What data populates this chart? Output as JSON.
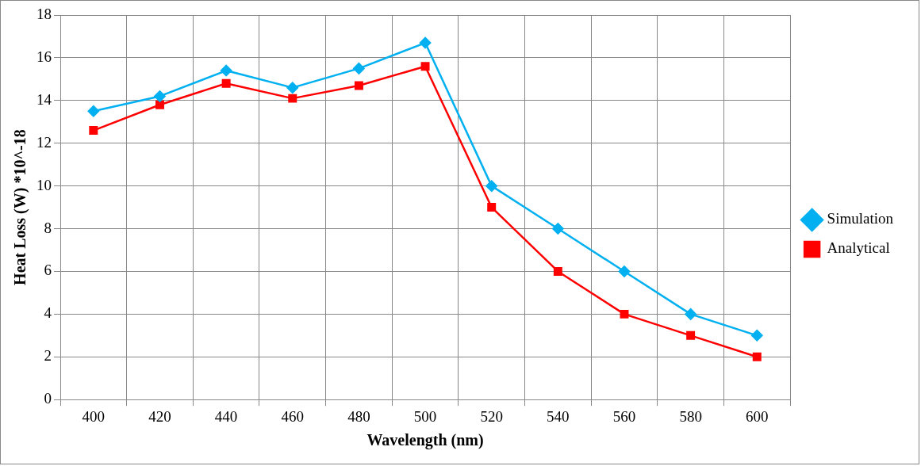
{
  "chart_data": {
    "type": "line",
    "xlabel": "Wavelength (nm)",
    "ylabel": "Heat Loss (W) *10^-18",
    "categories": [
      "400",
      "420",
      "440",
      "460",
      "480",
      "500",
      "520",
      "540",
      "560",
      "580",
      "600"
    ],
    "series": [
      {
        "name": "Simulation",
        "color": "#00b0f0",
        "marker": "diamond",
        "values": [
          13.5,
          14.2,
          15.4,
          14.6,
          15.5,
          16.7,
          10,
          8,
          6,
          4,
          3
        ]
      },
      {
        "name": "Analytical",
        "color": "#ff0000",
        "marker": "square",
        "values": [
          12.6,
          13.8,
          14.8,
          14.1,
          14.7,
          15.6,
          9,
          6,
          4,
          3,
          2
        ]
      }
    ],
    "ylim": [
      0,
      18
    ],
    "yticks": [
      0,
      2,
      4,
      6,
      8,
      10,
      12,
      14,
      16,
      18
    ],
    "grid": true,
    "legend": "right"
  }
}
